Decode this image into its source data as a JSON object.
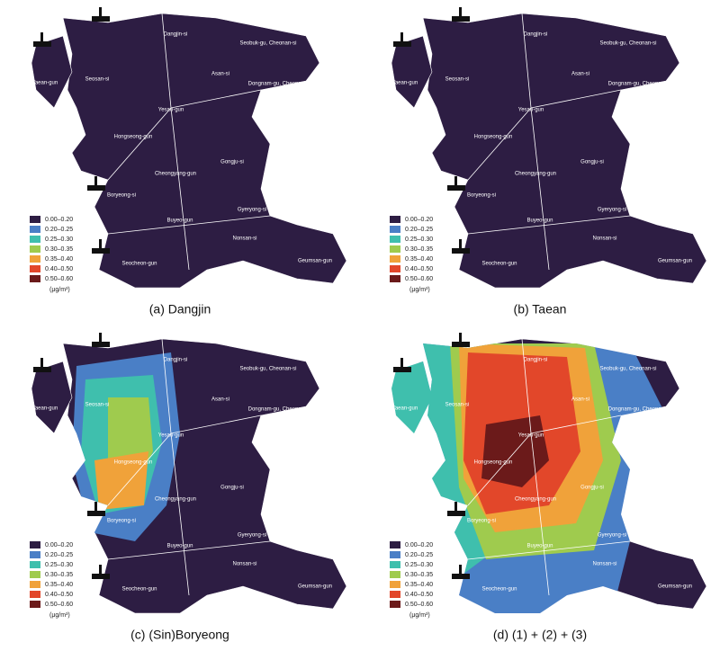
{
  "legend": {
    "items": [
      {
        "label": "0.00–0.20",
        "color": "#2d1d43"
      },
      {
        "label": "0.20–0.25",
        "color": "#4a7fc6"
      },
      {
        "label": "0.25–0.30",
        "color": "#3fbfad"
      },
      {
        "label": "0.30–0.35",
        "color": "#9fcb4e"
      },
      {
        "label": "0.35–0.40",
        "color": "#f0a23a"
      },
      {
        "label": "0.40–0.50",
        "color": "#e2472a"
      },
      {
        "label": "0.50–0.60",
        "color": "#6b1a1a"
      }
    ],
    "unit": "(μg/m³)"
  },
  "regions": [
    "Dangjin-si",
    "Seobuk-gu, Cheonan-si",
    "Seosan-si",
    "Asan-si",
    "Dongnam-gu, Cheonan-si",
    "Taean-gun",
    "Yesan-gun",
    "Hongseong-gun",
    "Gongju-si",
    "Cheongyang-gun",
    "Boryeong-si",
    "Gyeryong-si",
    "Buyeo-gun",
    "Nonsan-si",
    "Seocheon-gun",
    "Geumsan-gun"
  ],
  "panels": [
    {
      "caption": "(a) Dangjin"
    },
    {
      "caption": "(b) Taean"
    },
    {
      "caption": "(c) (Sin)Boryeong"
    },
    {
      "caption": "(d) (1) + (2) + (3)"
    }
  ]
}
